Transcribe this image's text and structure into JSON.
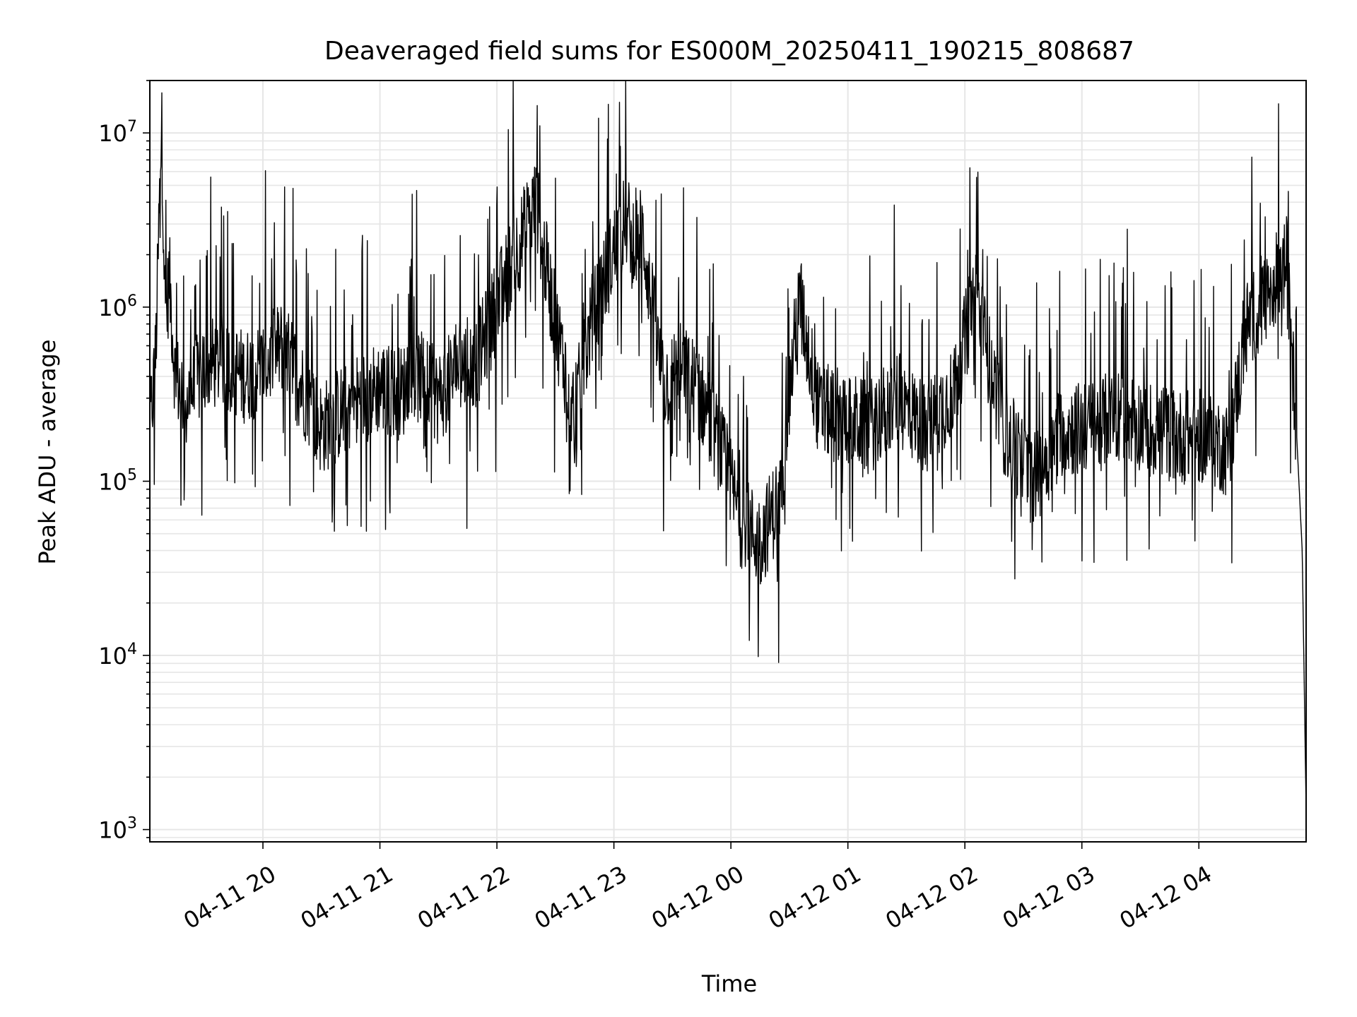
{
  "chart_data": {
    "type": "line",
    "title": "Deaveraged field sums for ES000M_20250411_190215_808687",
    "xlabel": "Time",
    "ylabel": "Peak ADU - average",
    "yscale": "log",
    "ylim": [
      850,
      20000000
    ],
    "xlim": [
      "2025-04-11 19:02",
      "2025-04-12 04:55"
    ],
    "grid": true,
    "line_color": "#000000",
    "grid_color": "#e6e6e6",
    "x_tick_labels": [
      "04-11 20",
      "04-11 21",
      "04-11 22",
      "04-11 23",
      "04-12 00",
      "04-12 01",
      "04-12 02",
      "04-12 03",
      "04-12 04"
    ],
    "x_tick_times": [
      "2025-04-11 20:00",
      "2025-04-11 21:00",
      "2025-04-11 22:00",
      "2025-04-11 23:00",
      "2025-04-12 00:00",
      "2025-04-12 01:00",
      "2025-04-12 02:00",
      "2025-04-12 03:00",
      "2025-04-12 04:00"
    ],
    "y_ticks": [
      {
        "value": 1000,
        "base": "10",
        "exp": "3"
      },
      {
        "value": 10000,
        "base": "10",
        "exp": "4"
      },
      {
        "value": 100000,
        "base": "10",
        "exp": "5"
      },
      {
        "value": 1000000,
        "base": "10",
        "exp": "6"
      },
      {
        "value": 10000000,
        "base": "10",
        "exp": "7"
      }
    ],
    "series": [
      {
        "x": [
          "2025-04-11 19:02",
          "2025-04-11 19:05",
          "2025-04-11 19:08",
          "2025-04-11 19:10",
          "2025-04-11 19:12",
          "2025-04-11 19:15",
          "2025-04-11 19:20",
          "2025-04-11 19:25",
          "2025-04-11 19:30",
          "2025-04-11 19:40",
          "2025-04-11 19:50",
          "2025-04-11 20:00",
          "2025-04-11 20:10",
          "2025-04-11 20:20",
          "2025-04-11 20:30",
          "2025-04-11 20:40",
          "2025-04-11 20:50",
          "2025-04-11 21:00",
          "2025-04-11 21:10",
          "2025-04-11 21:20",
          "2025-04-11 21:30",
          "2025-04-11 21:40",
          "2025-04-11 21:50",
          "2025-04-11 22:05",
          "2025-04-11 22:20",
          "2025-04-11 22:30",
          "2025-04-11 22:40",
          "2025-04-11 22:50",
          "2025-04-11 23:05",
          "2025-04-11 23:15",
          "2025-04-11 23:25",
          "2025-04-11 23:35",
          "2025-04-11 23:45",
          "2025-04-11 23:55",
          "2025-04-12 00:05",
          "2025-04-12 00:15",
          "2025-04-12 00:25",
          "2025-04-12 00:35",
          "2025-04-12 00:45",
          "2025-04-12 00:55",
          "2025-04-12 01:10",
          "2025-04-12 01:25",
          "2025-04-12 01:40",
          "2025-04-12 01:55",
          "2025-04-12 02:05",
          "2025-04-12 02:20",
          "2025-04-12 02:35",
          "2025-04-12 02:50",
          "2025-04-12 03:05",
          "2025-04-12 03:20",
          "2025-04-12 03:35",
          "2025-04-12 03:50",
          "2025-04-12 04:05",
          "2025-04-12 04:15",
          "2025-04-12 04:25",
          "2025-04-12 04:35",
          "2025-04-12 04:45",
          "2025-04-12 04:50",
          "2025-04-12 04:53",
          "2025-04-12 04:55"
        ],
        "y": [
          200000,
          500000,
          12000000,
          800000,
          1500000,
          400000,
          300000,
          350000,
          450000,
          500000,
          400000,
          450000,
          600000,
          350000,
          200000,
          250000,
          300000,
          350000,
          320000,
          400000,
          300000,
          450000,
          500000,
          1500000,
          4000000,
          800000,
          250000,
          1000000,
          3000000,
          2500000,
          350000,
          450000,
          300000,
          150000,
          60000,
          45000,
          80000,
          1200000,
          250000,
          250000,
          200000,
          300000,
          200000,
          350000,
          1200000,
          200000,
          100000,
          200000,
          200000,
          250000,
          200000,
          180000,
          180000,
          150000,
          800000,
          1200000,
          1800000,
          200000,
          40000,
          1300
        ]
      }
    ]
  }
}
